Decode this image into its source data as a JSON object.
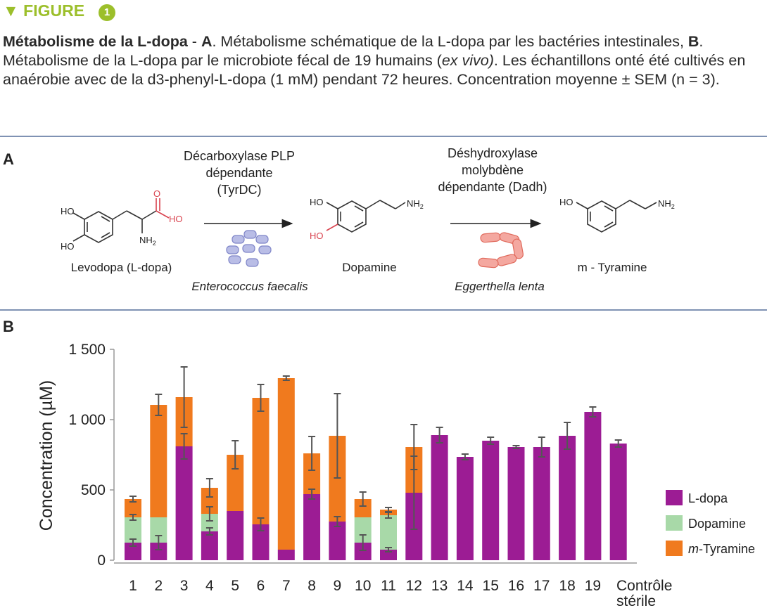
{
  "header": {
    "tag": "▼ FIGURE",
    "number": "1"
  },
  "caption": {
    "title": "Métabolisme de la L-dopa",
    "sep": " - ",
    "a_letter": "A",
    "a_text": ". Métabolisme schématique de la L-dopa par les bactéries intestinales, ",
    "b_letter": "B",
    "b_text": ". Métabolisme de la L-dopa par le microbiote fécal de 19 humains (",
    "b_italic": "ex vivo)",
    "b_end": ". Les échantillons onté été cultivés en anaérobie avec de la d3-phenyl-L-dopa (1 mM) pendant 72 heures. Concentration moyenne ± SEM (n = 3)."
  },
  "panel_a": {
    "letter": "A",
    "enzyme1": [
      "Décarboxylase PLP",
      "dépendante",
      "(TyrDC)"
    ],
    "enzyme2": [
      "Déshydroxylase",
      "molybdène",
      "dépendante (Dadh)"
    ],
    "compound1": "Levodopa (L-dopa)",
    "compound2": "Dopamine",
    "compound3": "m - Tyramine",
    "bacterium1": "Enterococcus faecalis",
    "bacterium2": "Eggerthella lenta",
    "atoms": {
      "ho": "HO",
      "o": "O",
      "nh2": "NH2"
    }
  },
  "panel_b_letter": "B",
  "colors": {
    "ldopa": "#9c1c94",
    "dopamine": "#a8d9a8",
    "tyramine": "#f07a1e",
    "accent": "#9cbf2b",
    "rule": "#7f92b3",
    "red_atom": "#d9434f"
  },
  "chart_data": {
    "type": "bar",
    "stacked": true,
    "categories": [
      "1",
      "2",
      "3",
      "4",
      "5",
      "6",
      "7",
      "8",
      "9",
      "10",
      "11",
      "12",
      "13",
      "14",
      "15",
      "16",
      "17",
      "18",
      "19",
      "Contrôle stérile"
    ],
    "series": [
      {
        "name": "L-dopa",
        "color": "#9c1c94",
        "values": [
          125,
          125,
          810,
          205,
          350,
          255,
          75,
          470,
          275,
          125,
          75,
          480,
          890,
          735,
          850,
          805,
          805,
          885,
          1055,
          830
        ]
      },
      {
        "name": "Dopamine",
        "color": "#a8d9a8",
        "values": [
          180,
          180,
          0,
          125,
          0,
          0,
          0,
          0,
          0,
          180,
          245,
          0,
          0,
          0,
          0,
          0,
          0,
          0,
          0,
          0
        ]
      },
      {
        "name": "m-Tyramine",
        "color": "#f07a1e",
        "values": [
          130,
          800,
          350,
          185,
          400,
          900,
          1220,
          290,
          610,
          130,
          40,
          325,
          0,
          0,
          0,
          0,
          0,
          0,
          0,
          0
        ]
      }
    ],
    "error_bars": {
      "L-dopa": [
        25,
        50,
        90,
        25,
        0,
        45,
        0,
        35,
        35,
        55,
        15,
        260,
        55,
        20,
        25,
        10,
        70,
        95,
        35,
        25
      ],
      "Dopamine": [
        20,
        0,
        0,
        50,
        0,
        0,
        0,
        0,
        0,
        0,
        20,
        0,
        0,
        0,
        0,
        0,
        0,
        0,
        0,
        0
      ],
      "m-Tyramine": [
        20,
        75,
        215,
        65,
        100,
        95,
        15,
        120,
        300,
        50,
        15,
        160,
        0,
        0,
        0,
        0,
        0,
        0,
        0,
        0
      ]
    },
    "ylabel": "Concentration (µM)",
    "xlabel": "",
    "ylim": [
      0,
      1500
    ],
    "yticks": [
      0,
      500,
      1000,
      1500
    ],
    "ytick_labels": [
      "0",
      "500",
      "1 000",
      "1 500"
    ],
    "legend": {
      "position": "right",
      "entries": [
        "L-dopa",
        "Dopamine",
        "m-Tyramine"
      ],
      "italic_prefix": "m"
    }
  }
}
